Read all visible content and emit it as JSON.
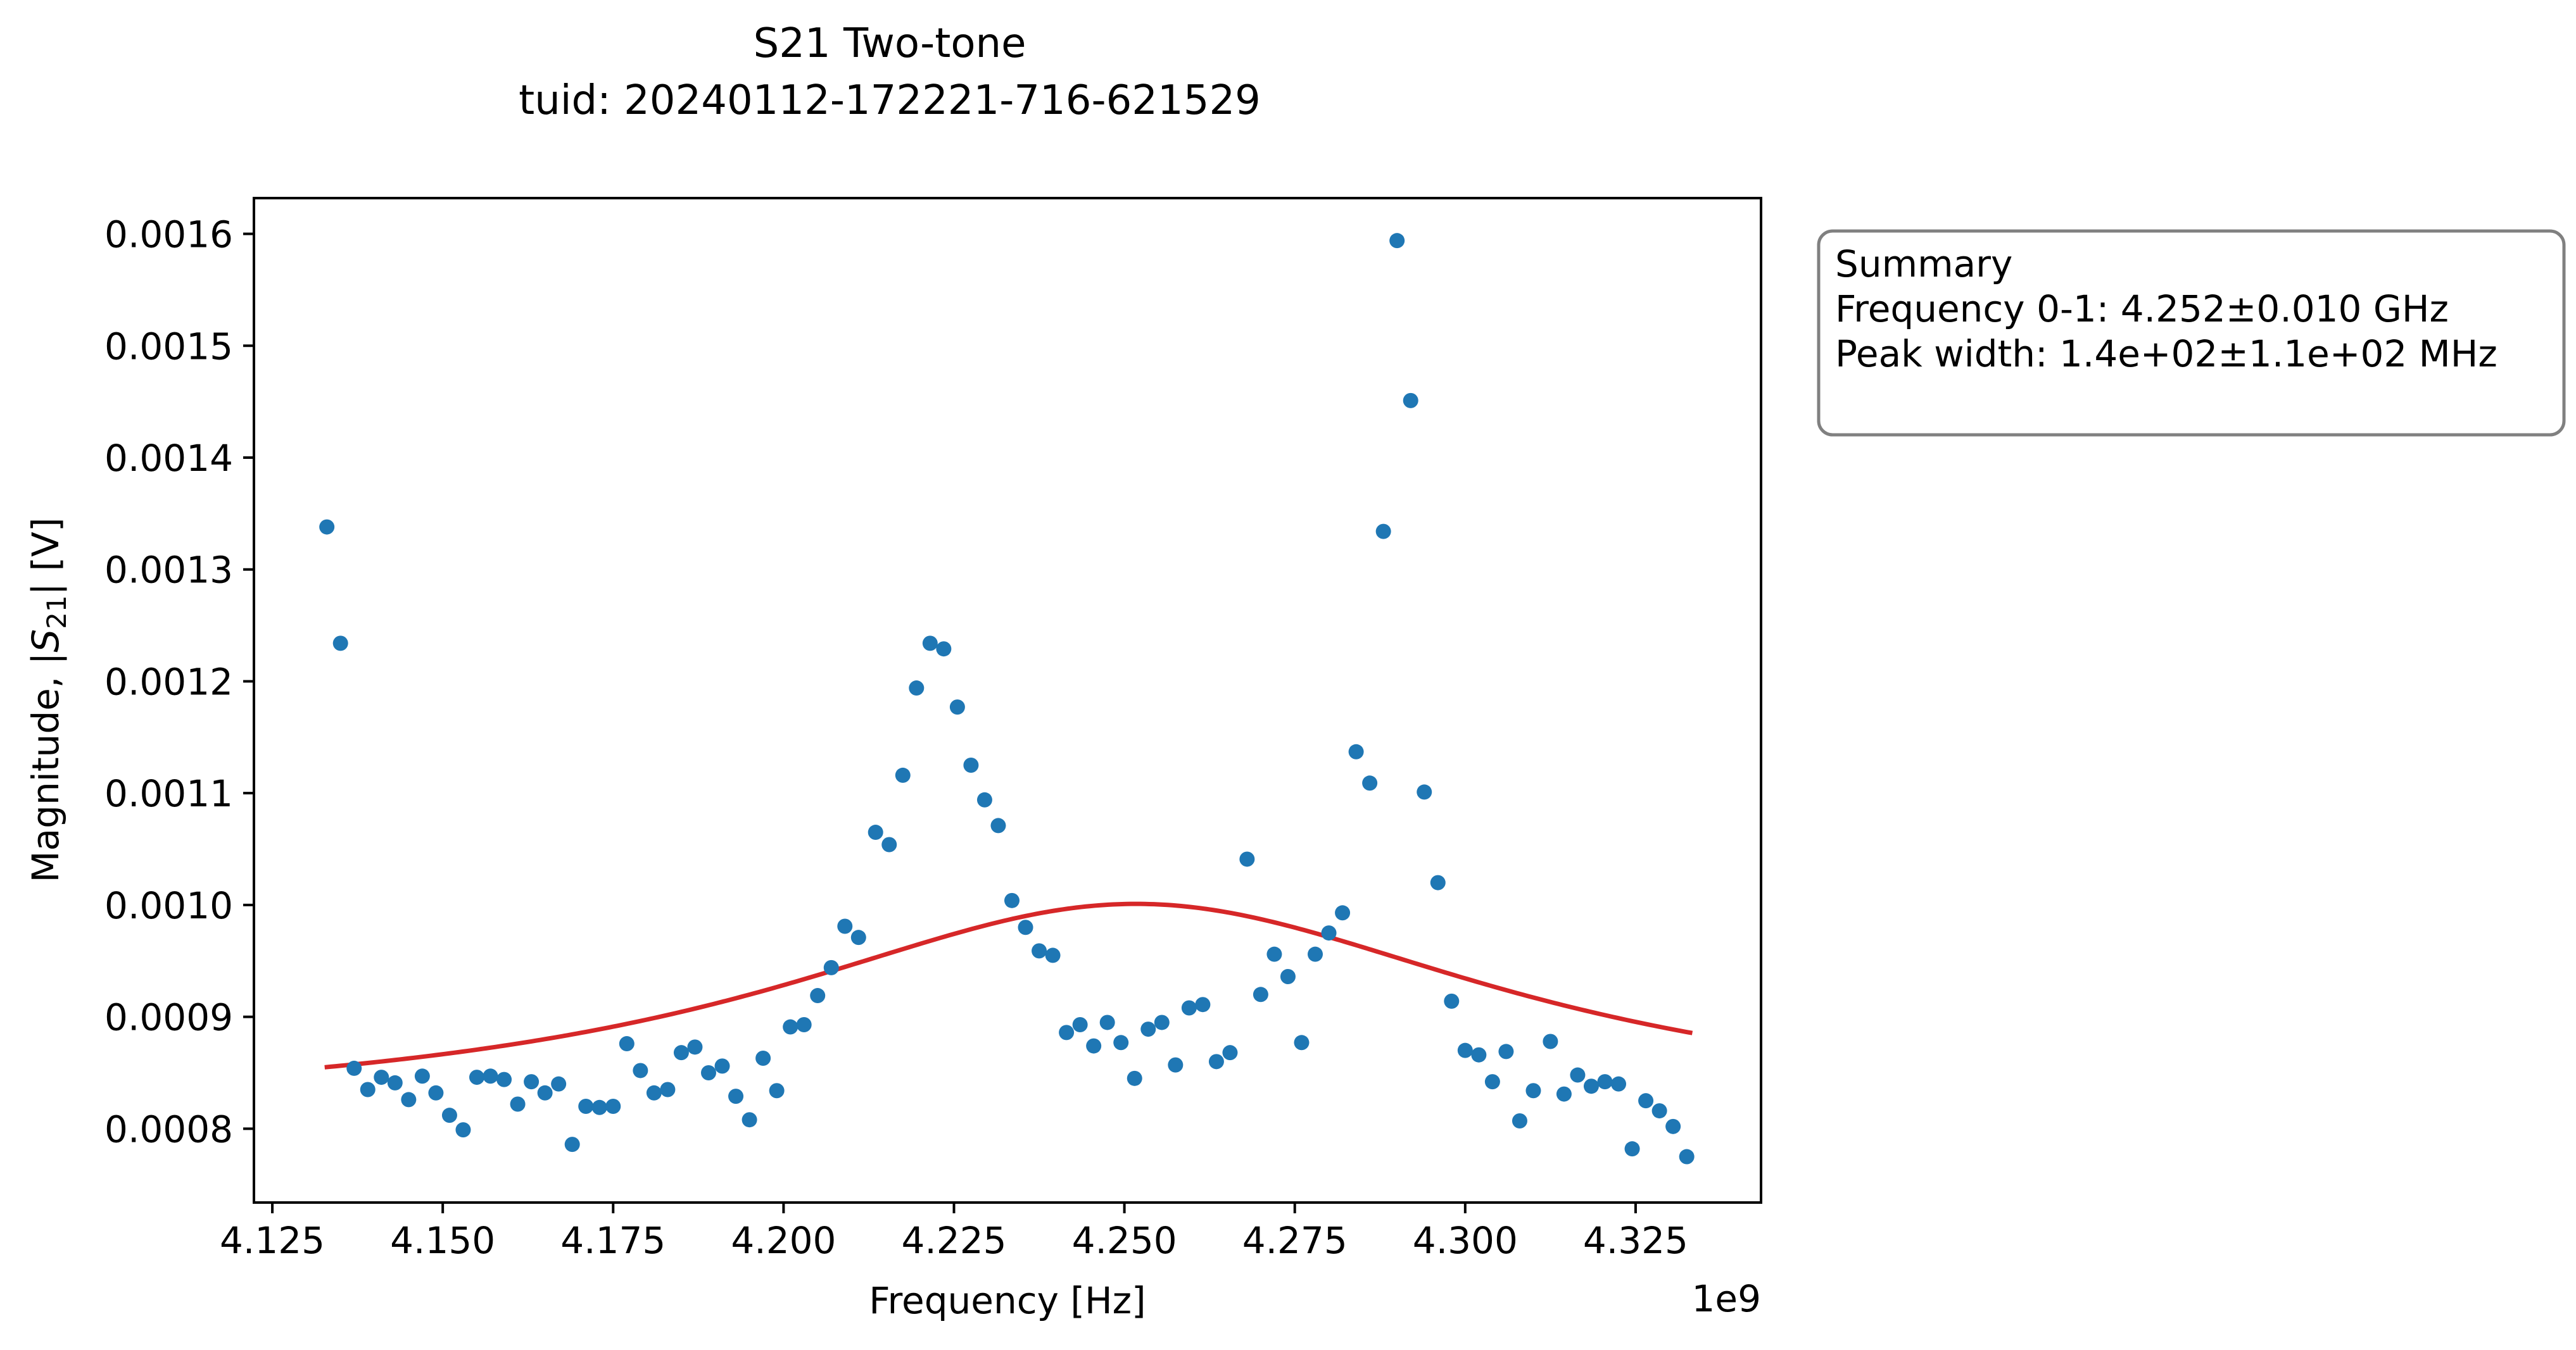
{
  "chart_data": {
    "type": "scatter",
    "title_lines": [
      "S21 Two-tone",
      "tuid: 20240112-172221-716-621529"
    ],
    "xlabel": "Frequency [Hz]",
    "ylabel_parts": {
      "pre": "Magnitude, |",
      "sym": "S",
      "sub": "21",
      "post": "| [V]"
    },
    "x_offset_label": "1e9",
    "xlim": [
      4122300000.0,
      4343400000.0
    ],
    "ylim": [
      0.000734,
      0.001632
    ],
    "xticks": [
      {
        "value": 4125000000.0,
        "label": "4.125"
      },
      {
        "value": 4150000000.0,
        "label": "4.150"
      },
      {
        "value": 4175000000.0,
        "label": "4.175"
      },
      {
        "value": 4200000000.0,
        "label": "4.200"
      },
      {
        "value": 4225000000.0,
        "label": "4.225"
      },
      {
        "value": 4250000000.0,
        "label": "4.250"
      },
      {
        "value": 4275000000.0,
        "label": "4.275"
      },
      {
        "value": 4300000000.0,
        "label": "4.300"
      },
      {
        "value": 4325000000.0,
        "label": "4.325"
      }
    ],
    "yticks": [
      {
        "value": 0.0008,
        "label": "0.0008"
      },
      {
        "value": 0.0009,
        "label": "0.0009"
      },
      {
        "value": 0.001,
        "label": "0.0010"
      },
      {
        "value": 0.0011,
        "label": "0.0011"
      },
      {
        "value": 0.0012,
        "label": "0.0012"
      },
      {
        "value": 0.0013,
        "label": "0.0013"
      },
      {
        "value": 0.0014,
        "label": "0.0014"
      },
      {
        "value": 0.0015,
        "label": "0.0015"
      },
      {
        "value": 0.0016,
        "label": "0.0016"
      }
    ],
    "grid": false,
    "series": [
      {
        "kind": "scatter",
        "color": "#1f77b4",
        "points": [
          [
            4133000000.0,
            0.001338
          ],
          [
            4135000000.0,
            0.001234
          ],
          [
            4137000000.0,
            0.000854
          ],
          [
            4139000000.0,
            0.000835
          ],
          [
            4141000000.0,
            0.000846
          ],
          [
            4143000000.0,
            0.000841
          ],
          [
            4145000000.0,
            0.000826
          ],
          [
            4147000000.0,
            0.000847
          ],
          [
            4149000000.0,
            0.000832
          ],
          [
            4151000000.0,
            0.000812
          ],
          [
            4153000000.0,
            0.000799
          ],
          [
            4155000000.0,
            0.000846
          ],
          [
            4157000000.0,
            0.000847
          ],
          [
            4159000000.0,
            0.000844
          ],
          [
            4161000000.0,
            0.000822
          ],
          [
            4163000000.0,
            0.000842
          ],
          [
            4165000000.0,
            0.000832
          ],
          [
            4167000000.0,
            0.00084
          ],
          [
            4169000000.0,
            0.000786
          ],
          [
            4171000000.0,
            0.00082
          ],
          [
            4173000000.0,
            0.000819
          ],
          [
            4175000000.0,
            0.00082
          ],
          [
            4177000000.0,
            0.000876
          ],
          [
            4179000000.0,
            0.000852
          ],
          [
            4181000000.0,
            0.000832
          ],
          [
            4183000000.0,
            0.000835
          ],
          [
            4185000000.0,
            0.000868
          ],
          [
            4187000000.0,
            0.000873
          ],
          [
            4189000000.0,
            0.00085
          ],
          [
            4191000000.0,
            0.000856
          ],
          [
            4193000000.0,
            0.000829
          ],
          [
            4195000000.0,
            0.000808
          ],
          [
            4197000000.0,
            0.000863
          ],
          [
            4199000000.0,
            0.000834
          ],
          [
            4201000000.0,
            0.000891
          ],
          [
            4203000000.0,
            0.000893
          ],
          [
            4205000000.0,
            0.000919
          ],
          [
            4207000000.0,
            0.000944
          ],
          [
            4209000000.0,
            0.000981
          ],
          [
            4211000000.0,
            0.000971
          ],
          [
            4213500000.0,
            0.001065
          ],
          [
            4215500000.0,
            0.001054
          ],
          [
            4217500000.0,
            0.001116
          ],
          [
            4219500000.0,
            0.001194
          ],
          [
            4221500000.0,
            0.001234
          ],
          [
            4223500000.0,
            0.001229
          ],
          [
            4225500000.0,
            0.001177
          ],
          [
            4227500000.0,
            0.001125
          ],
          [
            4229500000.0,
            0.001094
          ],
          [
            4231500000.0,
            0.001071
          ],
          [
            4233500000.0,
            0.001004
          ],
          [
            4235500000.0,
            0.00098
          ],
          [
            4237500000.0,
            0.000959
          ],
          [
            4239500000.0,
            0.000955
          ],
          [
            4241500000.0,
            0.000886
          ],
          [
            4243500000.0,
            0.000893
          ],
          [
            4245500000.0,
            0.000874
          ],
          [
            4247500000.0,
            0.000895
          ],
          [
            4249500000.0,
            0.000877
          ],
          [
            4251500000.0,
            0.000845
          ],
          [
            4253500000.0,
            0.000889
          ],
          [
            4255500000.0,
            0.000895
          ],
          [
            4257500000.0,
            0.000857
          ],
          [
            4259500000.0,
            0.000908
          ],
          [
            4261500000.0,
            0.000911
          ],
          [
            4263500000.0,
            0.00086
          ],
          [
            4265500000.0,
            0.000868
          ],
          [
            4268000000.0,
            0.001041
          ],
          [
            4270000000.0,
            0.00092
          ],
          [
            4272000000.0,
            0.000956
          ],
          [
            4274000000.0,
            0.000936
          ],
          [
            4276000000.0,
            0.000877
          ],
          [
            4278000000.0,
            0.000956
          ],
          [
            4280000000.0,
            0.000975
          ],
          [
            4282000000.0,
            0.000993
          ],
          [
            4284000000.0,
            0.001137
          ],
          [
            4286000000.0,
            0.001109
          ],
          [
            4288000000.0,
            0.001334
          ],
          [
            4290000000.0,
            0.001594
          ],
          [
            4292000000.0,
            0.001451
          ],
          [
            4294000000.0,
            0.001101
          ],
          [
            4296000000.0,
            0.00102
          ],
          [
            4298000000.0,
            0.000914
          ],
          [
            4300000000.0,
            0.00087
          ],
          [
            4302000000.0,
            0.000866
          ],
          [
            4304000000.0,
            0.000842
          ],
          [
            4306000000.0,
            0.000869
          ],
          [
            4308000000.0,
            0.000807
          ],
          [
            4310000000.0,
            0.000834
          ],
          [
            4312500000.0,
            0.000878
          ],
          [
            4314500000.0,
            0.000831
          ],
          [
            4316500000.0,
            0.000848
          ],
          [
            4318500000.0,
            0.000838
          ],
          [
            4320500000.0,
            0.000842
          ],
          [
            4322500000.0,
            0.00084
          ],
          [
            4324500000.0,
            0.000782
          ],
          [
            4326500000.0,
            0.000825
          ],
          [
            4328500000.0,
            0.000816
          ],
          [
            4330500000.0,
            0.000802
          ],
          [
            4332500000.0,
            0.000775
          ]
        ]
      },
      {
        "kind": "line",
        "color": "#d62728",
        "model": "lorentzian",
        "center": 4251700000.0,
        "hwhm": 66000000.0,
        "amplitude": 0.000191,
        "offset": 0.00081,
        "x_range": [
          4133000000.0,
          4333000000.0
        ]
      }
    ],
    "annotation_box": {
      "lines": [
        "Summary",
        "Frequency 0-1: 4.252±0.010 GHz",
        "Peak width: 1.4e+02±1.1e+02 MHz"
      ],
      "position": "outside right, top",
      "edge_color": "#808080"
    }
  }
}
